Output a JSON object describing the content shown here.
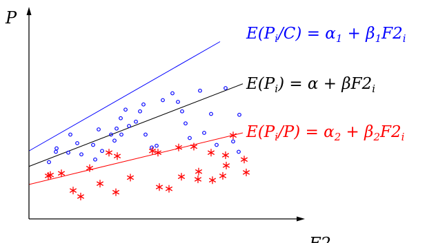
{
  "chart_data": {
    "type": "scatter",
    "title": "",
    "xlabel": "F2",
    "ylabel": "P",
    "grid": false,
    "legend": "none",
    "ticks": false,
    "series": [
      {
        "marker": "circle",
        "color": "#0000ff",
        "points": [
          [
            2.9,
            6.6
          ],
          [
            3.9,
            7.8
          ],
          [
            4.0,
            8.2
          ],
          [
            5.7,
            7.7
          ],
          [
            7.0,
            8.8
          ],
          [
            7.6,
            7.5
          ],
          [
            9.3,
            8.6
          ],
          [
            9.6,
            6.9
          ],
          [
            10.1,
            10.4
          ],
          [
            10.6,
            7.9
          ],
          [
            11.9,
            9.8
          ],
          [
            12.4,
            9.1
          ],
          [
            12.7,
            10.5
          ],
          [
            13.3,
            11.7
          ],
          [
            13.4,
            9.8
          ],
          [
            14.0,
            12.7
          ],
          [
            14.5,
            10.8
          ],
          [
            15.5,
            11.3
          ],
          [
            16.1,
            12.5
          ],
          [
            16.6,
            13.3
          ],
          [
            16.9,
            9.8
          ],
          [
            17.8,
            8.3
          ],
          [
            18.5,
            8.5
          ],
          [
            19.4,
            13.8
          ],
          [
            20.8,
            14.6
          ],
          [
            21.6,
            13.6
          ],
          [
            22.2,
            12.5
          ],
          [
            22.7,
            11.1
          ],
          [
            23.3,
            9.4
          ],
          [
            24.8,
            14.9
          ],
          [
            25.4,
            10.0
          ],
          [
            26.4,
            12.2
          ],
          [
            27.2,
            8.6
          ],
          [
            28.5,
            15.2
          ],
          [
            29.6,
            9.0
          ],
          [
            30.4,
            7.8
          ],
          [
            30.5,
            12.1
          ],
          [
            6.0,
            9.8
          ]
        ]
      },
      {
        "marker": "asterisk",
        "color": "#ff0000",
        "points": [
          [
            3.1,
            5.1
          ],
          [
            4.7,
            5.3
          ],
          [
            6.4,
            3.3
          ],
          [
            7.5,
            2.6
          ],
          [
            8.8,
            5.9
          ],
          [
            10.3,
            4.1
          ],
          [
            11.6,
            7.7
          ],
          [
            12.6,
            3.1
          ],
          [
            12.8,
            7.3
          ],
          [
            14.7,
            4.8
          ],
          [
            17.9,
            7.9
          ],
          [
            18.7,
            7.7
          ],
          [
            18.9,
            3.7
          ],
          [
            20.3,
            3.5
          ],
          [
            21.7,
            8.3
          ],
          [
            22.1,
            4.9
          ],
          [
            23.9,
            8.4
          ],
          [
            24.5,
            4.6
          ],
          [
            24.6,
            5.5
          ],
          [
            26.4,
            7.7
          ],
          [
            26.6,
            4.5
          ],
          [
            28.1,
            5.0
          ],
          [
            28.5,
            7.4
          ],
          [
            28.6,
            6.2
          ],
          [
            29.6,
            9.7
          ],
          [
            31.2,
            6.9
          ],
          [
            31.5,
            5.4
          ],
          [
            2.8,
            5.0
          ]
        ]
      }
    ],
    "lines": [
      {
        "color": "#0000ff",
        "label": "E(P_i/C) = α_1 + β_1 F2_i",
        "x": [
          0,
          27.7
        ],
        "y": [
          7.9,
          20.6
        ]
      },
      {
        "color": "#000000",
        "label": "E(P_i) = α + βF2_i",
        "x": [
          0,
          31.0
        ],
        "y": [
          6.1,
          15.7
        ]
      },
      {
        "color": "#ff0000",
        "label": "E(P_i/P) = α_2 + β_2 F2_i",
        "x": [
          0,
          31.0
        ],
        "y": [
          4.0,
          10.0
        ]
      }
    ],
    "xlim": [
      0,
      40
    ],
    "ylim": [
      0,
      24
    ]
  }
}
